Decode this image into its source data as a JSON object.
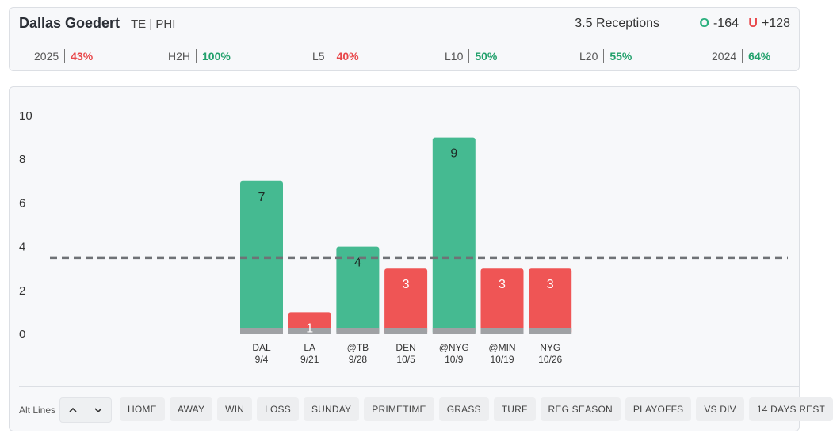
{
  "player": {
    "name": "Dallas Goedert",
    "meta": "TE | PHI"
  },
  "prop": {
    "line_label": "3.5 Receptions",
    "over": {
      "letter": "O",
      "odds": "-164"
    },
    "under": {
      "letter": "U",
      "odds": "+128"
    }
  },
  "stats": [
    {
      "label": "2025",
      "value": "43%",
      "status": "bad"
    },
    {
      "label": "H2H",
      "value": "100%",
      "status": "good"
    },
    {
      "label": "L5",
      "value": "40%",
      "status": "bad"
    },
    {
      "label": "L10",
      "value": "50%",
      "status": "good"
    },
    {
      "label": "L20",
      "value": "55%",
      "status": "good"
    },
    {
      "label": "2024",
      "value": "64%",
      "status": "good"
    }
  ],
  "colors": {
    "over": "#45ba91",
    "under": "#ef5555",
    "base": "#9fa1a4",
    "line": "#6f7276"
  },
  "chart_data": {
    "type": "bar",
    "title": "",
    "xlabel": "",
    "ylabel": "",
    "ylim": [
      0,
      10
    ],
    "yticks": [
      0,
      2,
      4,
      6,
      8,
      10
    ],
    "prop_line": 3.5,
    "categories": [
      {
        "opp": "DAL",
        "date": "9/4",
        "value": 7,
        "result": "over"
      },
      {
        "opp": "LA",
        "date": "9/21",
        "value": 1,
        "result": "under"
      },
      {
        "opp": "@TB",
        "date": "9/28",
        "value": 4,
        "result": "over"
      },
      {
        "opp": "DEN",
        "date": "10/5",
        "value": 3,
        "result": "under"
      },
      {
        "opp": "@NYG",
        "date": "10/9",
        "value": 9,
        "result": "over"
      },
      {
        "opp": "@MIN",
        "date": "10/19",
        "value": 3,
        "result": "under"
      },
      {
        "opp": "NYG",
        "date": "10/26",
        "value": 3,
        "result": "under"
      }
    ]
  },
  "filters": {
    "alt_lines_label": "Alt Lines",
    "chips": [
      "HOME",
      "AWAY",
      "WIN",
      "LOSS",
      "SUNDAY",
      "PRIMETIME",
      "GRASS",
      "TURF",
      "REG SEASON",
      "PLAYOFFS",
      "VS DIV",
      "14 DAYS REST"
    ]
  }
}
